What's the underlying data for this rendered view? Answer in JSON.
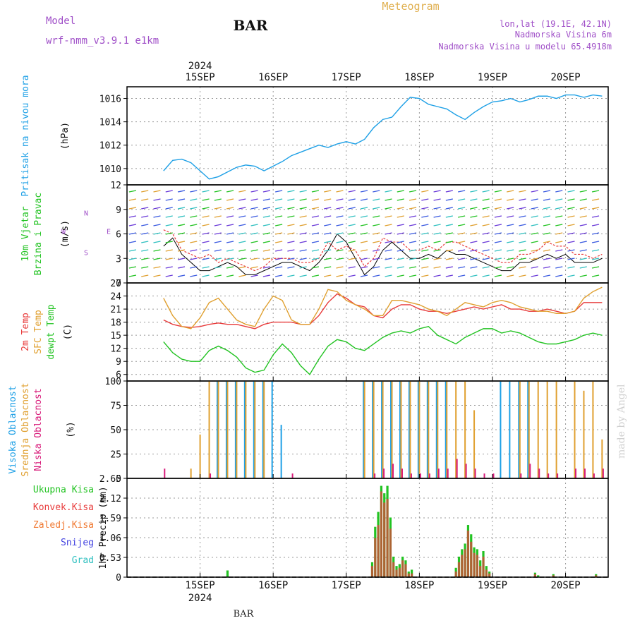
{
  "header": {
    "subtitle": "Meteogram",
    "model_label": "Model",
    "model_name": "wrf-nmm_v3.9.1 e1km",
    "station": "BAR",
    "coords": "lon,lat (19.1E, 42.1N)",
    "elev": "Nadmorska Visina 6m",
    "elev_model": "Nadmorska Visina u modelu 65.4918m",
    "footer_station": "BAR",
    "credit": "made by Angel"
  },
  "colors": {
    "pressure": "#1ea0e6",
    "temp2m": "#e83c3c",
    "sfc": "#e0a030",
    "dewpt": "#22c322",
    "high_cloud": "#1ea0e6",
    "mid_cloud": "#e0a030",
    "low_cloud": "#d81b7a",
    "total_rain": "#22c322",
    "conv_rain": "#e83c3c",
    "frz_rain": "#f07830",
    "snow": "#4040e0",
    "hail": "#30c0c0",
    "grid": "#999999"
  },
  "time_axis": {
    "year": "2024",
    "labels": [
      "15SEP",
      "16SEP",
      "17SEP",
      "18SEP",
      "19SEP",
      "20SEP"
    ]
  },
  "chart_data": [
    {
      "type": "line",
      "panel": "pressure",
      "ylabel": "Pritisak na nivou mora",
      "unit": "(hPa)",
      "ylim": [
        1008.6,
        1017.0
      ],
      "yticks": [
        1010,
        1012,
        1014,
        1016
      ],
      "x_hours": [
        0,
        3,
        6,
        9,
        12,
        15,
        18,
        21,
        24,
        27,
        30,
        33,
        36,
        39,
        42,
        45,
        48,
        51,
        54,
        57,
        60,
        63,
        66,
        69,
        72,
        75,
        78,
        81,
        84,
        87,
        90,
        93,
        96,
        99,
        102,
        105,
        108,
        111,
        114,
        117,
        120,
        123,
        126,
        129,
        132,
        135,
        138,
        141,
        144
      ],
      "series": [
        {
          "values": [
            1009.8,
            1010.7,
            1010.8,
            1010.5,
            1009.8,
            1009.1,
            1009.3,
            1009.7,
            1010.1,
            1010.3,
            1010.2,
            1009.8,
            1010.2,
            1010.6,
            1011.1,
            1011.4,
            1011.7,
            1012.0,
            1011.8,
            1012.1,
            1012.3,
            1012.1,
            1012.5,
            1013.5,
            1014.2,
            1014.4,
            1015.3,
            1016.1,
            1016.0,
            1015.5,
            1015.3,
            1015.1,
            1014.6,
            1014.2,
            1014.8,
            1015.3,
            1015.7,
            1015.8,
            1016.0,
            1015.7,
            1015.9,
            1016.2,
            1016.2,
            1016.0,
            1016.3,
            1016.3,
            1016.1,
            1016.3,
            1016.2
          ]
        }
      ]
    },
    {
      "type": "line",
      "panel": "wind",
      "ylabel": "10m Vjetar",
      "ylabel2": "Brzina i Pravac",
      "unit": "(m/s)",
      "compass": [
        "N",
        "W",
        "E",
        "S"
      ],
      "ylim": [
        0,
        12
      ],
      "yticks": [
        0,
        3,
        6,
        9,
        12
      ],
      "x_hours": [
        0,
        3,
        6,
        9,
        12,
        15,
        18,
        21,
        24,
        27,
        30,
        33,
        36,
        39,
        42,
        45,
        48,
        51,
        54,
        57,
        60,
        63,
        66,
        69,
        72,
        75,
        78,
        81,
        84,
        87,
        90,
        93,
        96,
        99,
        102,
        105,
        108,
        111,
        114,
        117,
        120,
        123,
        126,
        129,
        132,
        135,
        138,
        141,
        144
      ],
      "series": [
        {
          "name": "speed",
          "values": [
            4.5,
            5.5,
            3.5,
            2.5,
            1.5,
            1.5,
            2.0,
            2.5,
            2.0,
            1.0,
            1.0,
            1.5,
            2.0,
            2.5,
            2.5,
            2.0,
            1.5,
            2.5,
            4.0,
            6.0,
            5.0,
            3.0,
            1.0,
            2.0,
            4.0,
            5.0,
            4.0,
            3.0,
            3.0,
            3.5,
            3.0,
            4.0,
            3.5,
            3.5,
            3.0,
            2.5,
            2.0,
            1.5,
            1.5,
            2.5,
            2.5,
            3.0,
            3.5,
            3.0,
            3.5,
            2.5,
            2.5,
            2.5,
            3.0
          ]
        },
        {
          "name": "gust",
          "values": [
            6.5,
            6.0,
            4.0,
            3.5,
            3.0,
            3.5,
            2.5,
            3.0,
            2.5,
            2.0,
            1.5,
            2.0,
            3.0,
            3.0,
            3.0,
            2.5,
            2.5,
            3.0,
            5.0,
            4.0,
            4.5,
            4.0,
            2.0,
            3.0,
            5.5,
            5.0,
            5.0,
            4.0,
            4.0,
            4.5,
            4.0,
            5.0,
            5.0,
            4.5,
            4.0,
            3.5,
            3.0,
            2.5,
            2.5,
            3.5,
            3.5,
            4.0,
            5.0,
            4.5,
            4.5,
            3.5,
            3.5,
            3.0,
            3.5
          ]
        }
      ]
    },
    {
      "type": "line",
      "panel": "temperature",
      "ylabel": "2m Temp",
      "ylabel2": "SFC Temp",
      "ylabel3": "dewpt Temp",
      "unit": "(C)",
      "ylim": [
        4.5,
        27
      ],
      "yticks": [
        6,
        9,
        12,
        15,
        18,
        21,
        24,
        27
      ],
      "x_hours": [
        0,
        3,
        6,
        9,
        12,
        15,
        18,
        21,
        24,
        27,
        30,
        33,
        36,
        39,
        42,
        45,
        48,
        51,
        54,
        57,
        60,
        63,
        66,
        69,
        72,
        75,
        78,
        81,
        84,
        87,
        90,
        93,
        96,
        99,
        102,
        105,
        108,
        111,
        114,
        117,
        120,
        123,
        126,
        129,
        132,
        135,
        138,
        141,
        144
      ],
      "series": [
        {
          "name": "2m Temp",
          "values": [
            18.5,
            17.5,
            17.0,
            16.8,
            17.0,
            17.5,
            17.8,
            17.5,
            17.5,
            17.0,
            16.5,
            17.5,
            18.0,
            18.0,
            18.0,
            17.5,
            17.5,
            19.5,
            22.5,
            24.5,
            23.5,
            22.0,
            21.5,
            19.5,
            19.0,
            21.0,
            22.0,
            22.0,
            21.0,
            20.5,
            20.5,
            20.0,
            20.5,
            21.0,
            21.5,
            21.0,
            21.5,
            22.0,
            21.0,
            21.0,
            20.5,
            20.5,
            21.0,
            20.5,
            20.0,
            20.5,
            22.5,
            22.5,
            22.5
          ]
        },
        {
          "name": "SFC Temp",
          "values": [
            23.5,
            19.5,
            17.0,
            16.5,
            19.0,
            22.5,
            23.5,
            21.0,
            18.5,
            17.5,
            17.0,
            21.0,
            24.0,
            23.0,
            18.5,
            17.5,
            17.5,
            21.0,
            25.5,
            25.0,
            23.0,
            22.0,
            21.0,
            19.5,
            19.5,
            23.0,
            23.0,
            22.5,
            22.0,
            21.0,
            20.5,
            19.5,
            21.0,
            22.5,
            22.0,
            21.5,
            22.5,
            23.0,
            22.5,
            21.5,
            21.0,
            20.5,
            20.5,
            20.0,
            20.0,
            20.5,
            23.5,
            25.0,
            26.0
          ]
        },
        {
          "name": "dewpt Temp",
          "values": [
            13.5,
            11.0,
            9.5,
            9.0,
            9.0,
            11.5,
            12.5,
            11.5,
            10.0,
            7.5,
            6.5,
            7.0,
            10.5,
            13.0,
            11.0,
            8.0,
            6.0,
            9.5,
            12.5,
            14.0,
            13.5,
            12.0,
            11.5,
            13.0,
            14.5,
            15.5,
            16.0,
            15.5,
            16.5,
            17.0,
            15.0,
            14.0,
            13.0,
            14.5,
            15.5,
            16.5,
            16.5,
            15.5,
            16.0,
            15.5,
            14.5,
            13.5,
            13.0,
            13.0,
            13.5,
            14.0,
            15.0,
            15.5,
            15.0
          ]
        }
      ]
    },
    {
      "type": "bar",
      "panel": "cloud",
      "ylabel": "Visoka Oblacnost",
      "ylabel2": "Srednja Oblacnost",
      "ylabel3": "Niska Oblacnost",
      "unit": "(%)",
      "ylim": [
        0,
        100
      ],
      "yticks": [
        0,
        25,
        50,
        75,
        100
      ],
      "x_hours": [
        0,
        3,
        6,
        9,
        12,
        15,
        18,
        21,
        24,
        27,
        30,
        33,
        36,
        39,
        42,
        45,
        48,
        51,
        54,
        57,
        60,
        63,
        66,
        69,
        72,
        75,
        78,
        81,
        84,
        87,
        90,
        93,
        96,
        99,
        102,
        105,
        108,
        111,
        114,
        117,
        120,
        123,
        126,
        129,
        132,
        135,
        138,
        141,
        144
      ],
      "series": [
        {
          "name": "Visoka Oblacnost",
          "values": [
            0,
            0,
            0,
            0,
            0,
            0,
            100,
            100,
            100,
            100,
            100,
            100,
            100,
            55,
            0,
            0,
            0,
            0,
            0,
            0,
            0,
            0,
            100,
            100,
            100,
            100,
            100,
            100,
            100,
            100,
            100,
            100,
            0,
            0,
            0,
            0,
            0,
            100,
            100,
            100,
            100,
            0,
            0,
            0,
            0,
            0,
            0,
            0,
            0
          ]
        },
        {
          "name": "Srednja Oblacnost",
          "values": [
            0,
            0,
            0,
            10,
            45,
            100,
            100,
            100,
            100,
            100,
            100,
            100,
            0,
            0,
            0,
            0,
            0,
            0,
            0,
            0,
            0,
            0,
            100,
            100,
            100,
            100,
            100,
            100,
            100,
            100,
            100,
            100,
            100,
            100,
            70,
            0,
            0,
            0,
            0,
            100,
            100,
            100,
            100,
            100,
            0,
            100,
            90,
            100,
            40
          ]
        },
        {
          "name": "Niska Oblacnost",
          "values": [
            10,
            0,
            0,
            0,
            0,
            5,
            0,
            0,
            0,
            0,
            0,
            0,
            0,
            0,
            5,
            0,
            0,
            0,
            0,
            0,
            0,
            0,
            0,
            5,
            10,
            15,
            10,
            5,
            5,
            5,
            10,
            10,
            20,
            15,
            10,
            5,
            5,
            0,
            0,
            5,
            15,
            10,
            5,
            5,
            0,
            10,
            10,
            5,
            10
          ]
        }
      ]
    },
    {
      "type": "bar",
      "panel": "precip",
      "ylabel": "1hr Precip",
      "unit": "(mm)",
      "legend": [
        "Ukupna Kisa",
        "Konvek.Kisa",
        "Zaledj.Kisa",
        "Snijeg",
        "Grad"
      ],
      "ylim": [
        0,
        2.65
      ],
      "yticks": [
        0,
        0.53,
        1.06,
        1.59,
        2.12,
        2.65
      ],
      "x_hours": [
        21.0,
        68.5,
        69.5,
        70.5,
        71.5,
        72.5,
        73.5,
        74.5,
        75.5,
        76.5,
        77.5,
        78.5,
        79.5,
        80.5,
        81.5,
        96.0,
        97.0,
        98.0,
        99.0,
        100.0,
        101.0,
        102.0,
        103.0,
        104.0,
        105.0,
        106.0,
        107.0,
        122.0,
        123.0,
        128.0,
        142.0
      ],
      "series": [
        {
          "name": "Ukupna Kisa",
          "values": [
            0.18,
            0.4,
            1.35,
            1.75,
            2.45,
            2.25,
            2.45,
            1.6,
            0.55,
            0.3,
            0.35,
            0.55,
            0.45,
            0.15,
            0.2,
            0.25,
            0.55,
            0.75,
            0.9,
            1.4,
            1.15,
            0.8,
            0.75,
            0.45,
            0.7,
            0.3,
            0.15,
            0.12,
            0.05,
            0.08,
            0.08
          ]
        },
        {
          "name": "Konvek.Kisa",
          "values": [
            0.0,
            0.3,
            1.05,
            1.4,
            2.3,
            2.0,
            2.1,
            1.3,
            0.4,
            0.2,
            0.25,
            0.45,
            0.35,
            0.1,
            0.1,
            0.15,
            0.4,
            0.6,
            0.75,
            1.25,
            0.95,
            0.65,
            0.6,
            0.3,
            0.55,
            0.2,
            0.1,
            0.08,
            0.0,
            0.05,
            0.05
          ]
        }
      ]
    }
  ]
}
